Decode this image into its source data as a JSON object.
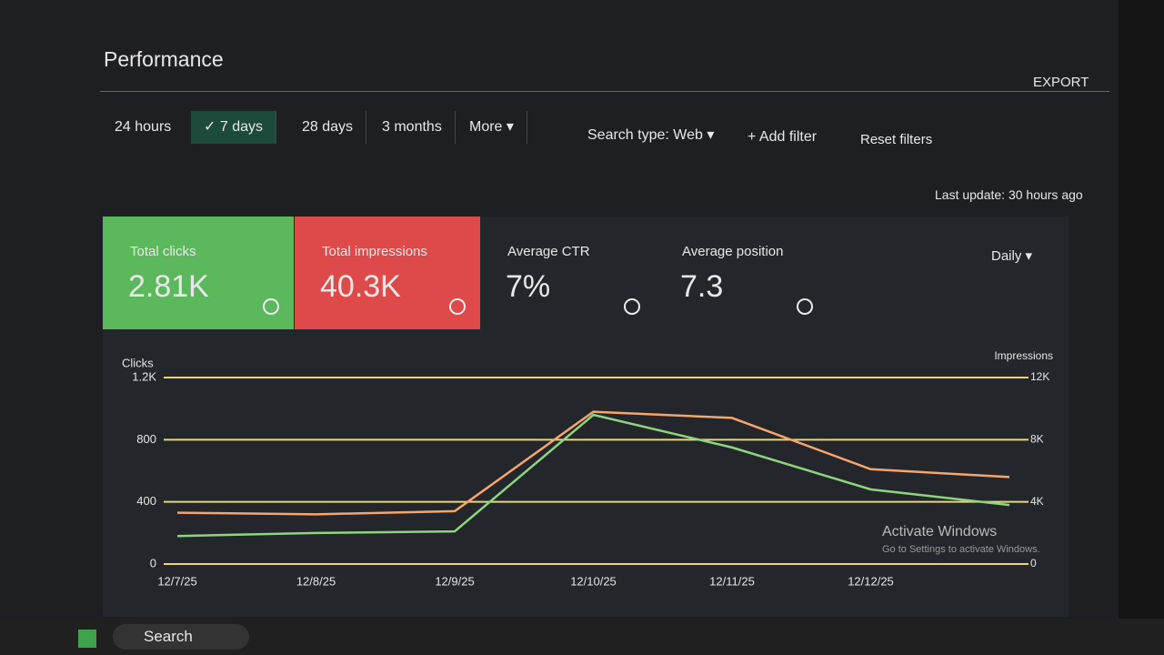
{
  "header": {
    "title": "Performance",
    "export": "EXPORT"
  },
  "filters": {
    "ranges": [
      "24 hours",
      "7 days",
      "28 days",
      "3 months",
      "More"
    ],
    "search_type": "Search type: Web",
    "add_filter": "Add filter",
    "reset": "Reset filters"
  },
  "last_update": "Last update: 30 hours ago",
  "metrics": [
    {
      "label": "Total clicks",
      "value": "2.81K"
    },
    {
      "label": "Total impressions",
      "value": "40.3K"
    },
    {
      "label": "Average CTR",
      "value": "7%"
    },
    {
      "label": "Average position",
      "value": "7.3"
    }
  ],
  "granularity": "Daily",
  "chart_data": {
    "type": "line",
    "y_label": "Clicks",
    "y2_label": "Impressions",
    "x": [
      "12/7/25",
      "12/8/25",
      "12/9/25",
      "12/10/25",
      "12/11/25",
      "12/12/25",
      null
    ],
    "series": [
      {
        "name": "Clicks",
        "color": "#8fd47e",
        "values": [
          180,
          200,
          210,
          960,
          750,
          480,
          380
        ]
      },
      {
        "name": "Impressions",
        "color": "#f7a56e",
        "axis": "y2",
        "values": [
          3300,
          3200,
          3400,
          9800,
          9400,
          6100,
          5600
        ]
      }
    ],
    "ylim": [
      0,
      1200
    ],
    "yticks": [
      0,
      400,
      800,
      {
        "value": 1200,
        "label": "1.2K"
      }
    ],
    "y2lim": [
      0,
      12000
    ],
    "y2ticks": [
      {
        "value": 0,
        "label": "0"
      },
      {
        "value": 4000,
        "label": "4K"
      },
      {
        "value": 8000,
        "label": "8K"
      },
      {
        "value": 12000,
        "label": "12K"
      }
    ],
    "grid": true
  },
  "overlay": {
    "title": "Activate Windows",
    "text": "Go to Settings to activate Windows."
  },
  "taskbar": {
    "search": "Search"
  }
}
